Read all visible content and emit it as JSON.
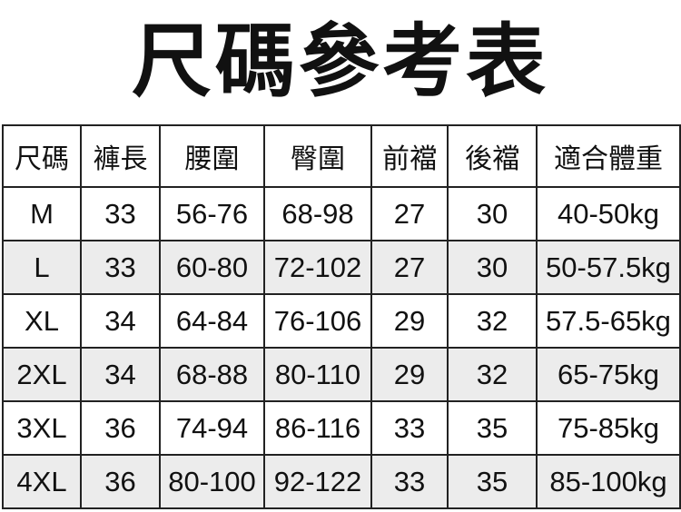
{
  "header": {
    "title": "尺碼參考表"
  },
  "table": {
    "columns": [
      "尺碼",
      "褲長",
      "腰圍",
      "臀圍",
      "前襠",
      "後襠",
      "適合體重"
    ],
    "rows": [
      [
        "M",
        33,
        "56-76",
        "68-98",
        27,
        30,
        "40-50kg"
      ],
      [
        "L",
        33,
        "60-80",
        "72-102",
        27,
        30,
        "50-57.5kg"
      ],
      [
        "XL",
        34,
        "64-84",
        "76-106",
        29,
        32,
        "57.5-65kg"
      ],
      [
        "2XL",
        34,
        "68-88",
        "80-110",
        29,
        32,
        "65-75kg"
      ],
      [
        "3XL",
        36,
        "74-94",
        "86-116",
        33,
        35,
        "75-85kg"
      ],
      [
        "4XL",
        36,
        "80-100",
        "92-122",
        33,
        35,
        "85-100kg"
      ]
    ]
  }
}
